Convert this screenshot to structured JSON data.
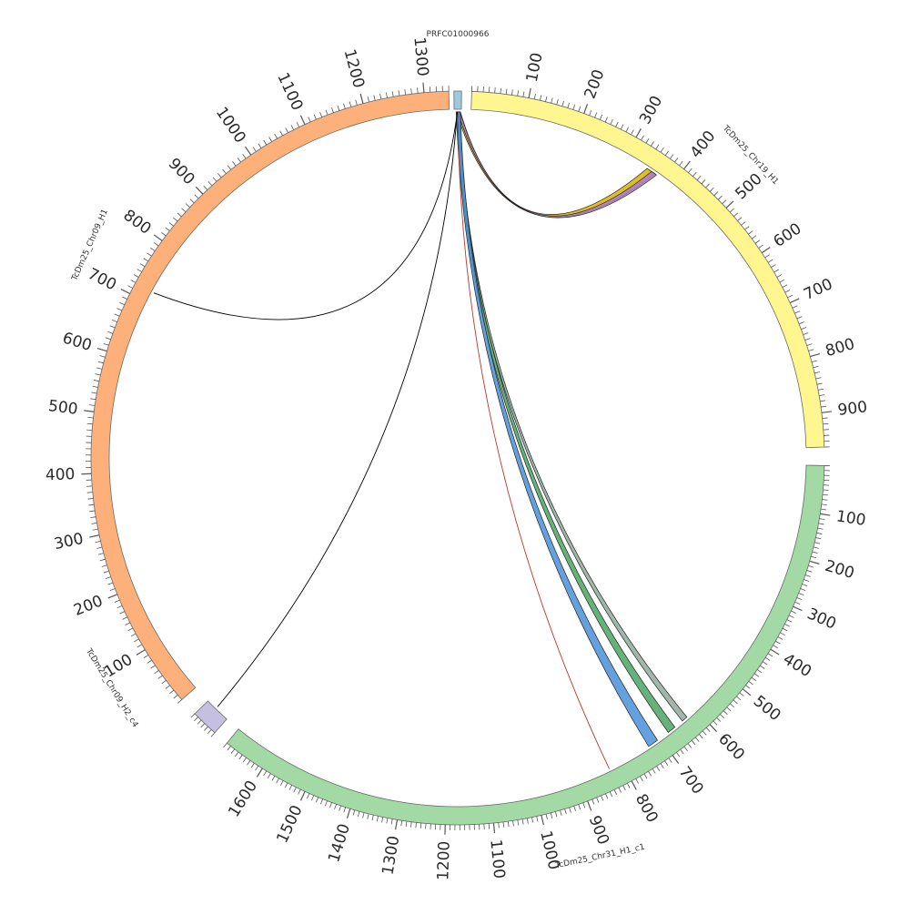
{
  "diagram": {
    "type": "circos",
    "segments": [
      {
        "id": "contig",
        "name": "PRFC01000966",
        "color": "#9ecae1",
        "tick_labels": []
      },
      {
        "id": "chr19",
        "name": "TcDm25_Chr19_H1",
        "color": "#fff68f",
        "tick_labels": [
          "100",
          "200",
          "300",
          "400",
          "500",
          "600",
          "700",
          "800",
          "900"
        ]
      },
      {
        "id": "chr31",
        "name": "TcDm25_Chr31_H1_c1",
        "color": "#a3d9a5",
        "tick_labels": [
          "100",
          "200",
          "300",
          "400",
          "500",
          "600",
          "700",
          "800",
          "900",
          "1000",
          "1100",
          "1200",
          "1300",
          "1400",
          "1500",
          "1600"
        ]
      },
      {
        "id": "chr09h2",
        "name": "TcDm25_Chr09_H2_c4",
        "color": "#c5bfe0",
        "tick_labels": []
      },
      {
        "id": "chr09h1",
        "name": "TcDm25_Chr09_H1",
        "color": "#fdb07a",
        "tick_labels": [
          "100",
          "200",
          "300",
          "400",
          "500",
          "600",
          "700",
          "800",
          "900",
          "1000",
          "1100",
          "1200",
          "1300"
        ]
      }
    ],
    "links": [
      {
        "from": "PRFC01000966",
        "to": "TcDm25_Chr19_H1",
        "color": "#d8b400",
        "style": "ribbon"
      },
      {
        "from": "PRFC01000966",
        "to": "TcDm25_Chr19_H1",
        "color": "#b07cc6",
        "style": "ribbon"
      },
      {
        "from": "PRFC01000966",
        "to": "TcDm25_Chr31_H1_c1",
        "color": "#8faa9c",
        "style": "ribbon"
      },
      {
        "from": "PRFC01000966",
        "to": "TcDm25_Chr31_H1_c1",
        "color": "#4aa564",
        "style": "ribbon"
      },
      {
        "from": "PRFC01000966",
        "to": "TcDm25_Chr31_H1_c1",
        "color": "#4a90d9",
        "style": "ribbon"
      },
      {
        "from": "PRFC01000966",
        "to": "TcDm25_Chr31_H1_c1",
        "color": "#b23a2a",
        "style": "line"
      },
      {
        "from": "PRFC01000966",
        "to": "TcDm25_Chr09_H1",
        "color": "#000000",
        "style": "line"
      },
      {
        "from": "PRFC01000966",
        "to": "TcDm25_Chr09_H2_c4",
        "color": "#000000",
        "style": "line"
      }
    ]
  }
}
